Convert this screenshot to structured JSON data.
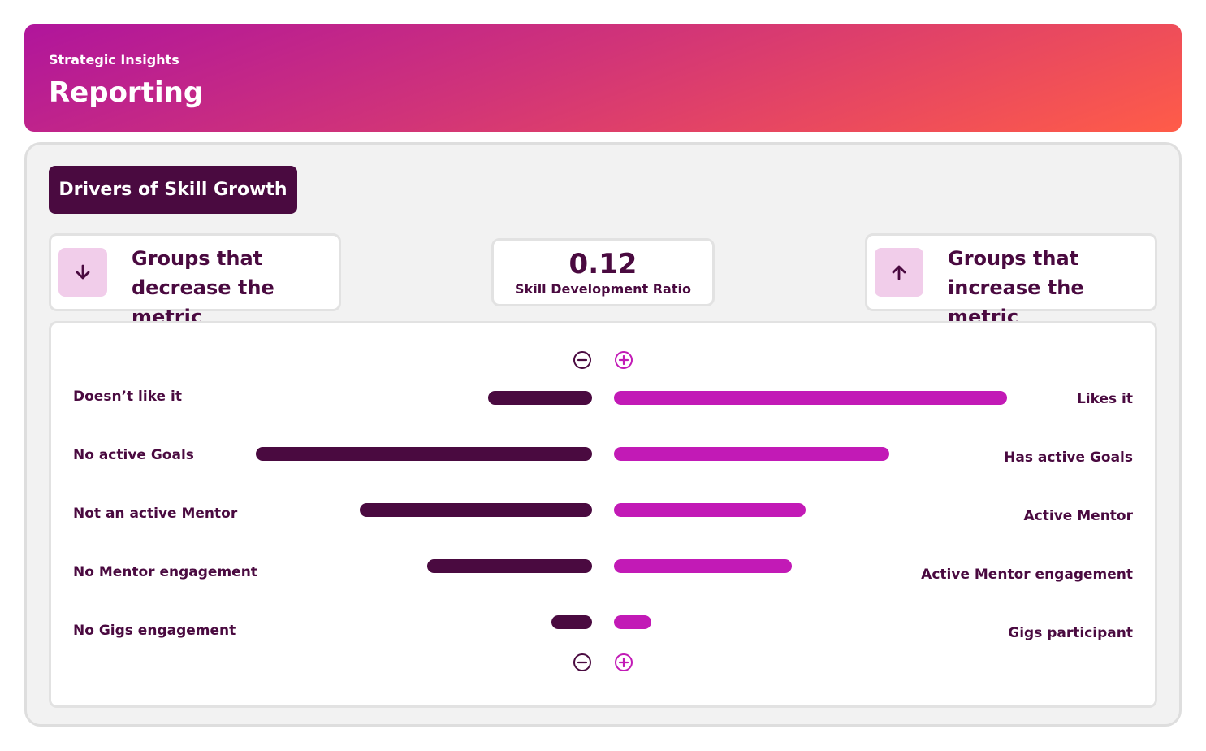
{
  "header": {
    "subtitle": "Strategic Insights",
    "title": "Reporting"
  },
  "section": {
    "title": "Drivers of Skill Growth"
  },
  "cards": {
    "decrease": {
      "text": "Groups that decrease the metric",
      "icon": "arrow-down-icon"
    },
    "increase": {
      "text": "Groups that increase the metric",
      "icon": "arrow-up-icon"
    },
    "metric": {
      "value": "0.12",
      "label": "Skill Development Ratio"
    }
  },
  "colors": {
    "negative": "#4a0a40",
    "positive": "#c21ab6",
    "icon_bg": "#f1cdea"
  },
  "chart_data": {
    "type": "bar",
    "orientation": "diverging-horizontal",
    "rows": [
      {
        "negative_label": "Doesn’t like it",
        "positive_label": "Likes it",
        "negative": 0.31,
        "positive": 1.17
      },
      {
        "negative_label": "No active Goals",
        "positive_label": "Has active Goals",
        "negative": 1.0,
        "positive": 0.82
      },
      {
        "negative_label": "Not an active Mentor",
        "positive_label": "Active Mentor",
        "negative": 0.69,
        "positive": 0.57
      },
      {
        "negative_label": "No Mentor engagement",
        "positive_label": "Active Mentor engagement",
        "negative": 0.49,
        "positive": 0.53
      },
      {
        "negative_label": "No Gigs engagement",
        "positive_label": "Gigs participant",
        "negative": 0.12,
        "positive": 0.11
      }
    ],
    "axis_symbols": [
      "minus-circle-icon",
      "plus-circle-icon"
    ]
  }
}
